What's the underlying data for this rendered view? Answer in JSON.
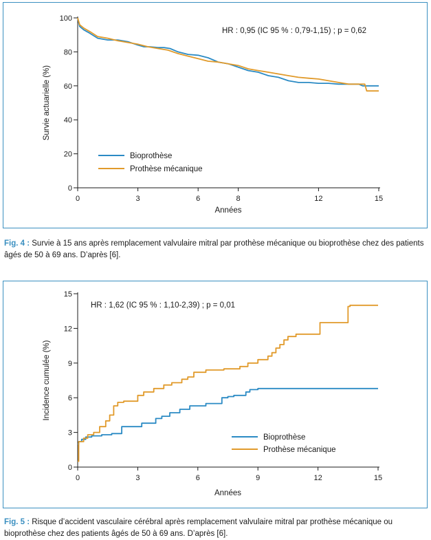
{
  "colors": {
    "bio": "#2a8ac4",
    "meca": "#e19a2a",
    "frame": "#3a8fc0"
  },
  "captions": [
    {
      "label": "Fig. 4 :",
      "text": "Survie à 15 ans après remplacement valvulaire mitral par prothèse mécanique ou bioprothèse chez des patients âgés de 50 à 69 ans. D’après [6]."
    },
    {
      "label": "Fig. 5 :",
      "text": "Risque d’accident vasculaire cérébral après remplacement valvulaire mitral par prothèse mécanique ou bioprothèse chez des patients âgés de 50 à 69 ans. D’après [6]."
    }
  ],
  "chart_data": [
    {
      "type": "line",
      "step": false,
      "xlabel": "Années",
      "ylabel": "Survie actuarielle (%)",
      "annotation": "HR : 0,95 (IC 95 % : 0,79-1,15) ; p = 0,62",
      "xlim": [
        0,
        15
      ],
      "ylim": [
        0,
        100
      ],
      "xticks": [
        0,
        3,
        6,
        8,
        12,
        15
      ],
      "xtick_labels": [
        "0",
        "3",
        "6",
        "8",
        "12",
        "15"
      ],
      "yticks": [
        0,
        20,
        40,
        60,
        80,
        100
      ],
      "legend_position": "bottom-left",
      "series": [
        {
          "name": "Bioprothèse",
          "color_key": "bio",
          "x": [
            0,
            0.1,
            0.3,
            0.6,
            1,
            1.5,
            2,
            2.5,
            3,
            3.3,
            3.6,
            4,
            4.3,
            4.6,
            5,
            5.5,
            6,
            6.5,
            7,
            7.5,
            8,
            8.5,
            9,
            9.5,
            10,
            10.5,
            11,
            11.5,
            12,
            12.5,
            13,
            13.5,
            14,
            14.2,
            14.5,
            15
          ],
          "y": [
            100,
            95,
            93,
            91,
            88,
            87,
            87,
            86,
            84,
            83,
            83,
            82.5,
            82.5,
            82,
            80,
            78.5,
            78,
            76.5,
            74,
            73,
            71,
            69,
            68,
            66,
            65,
            63,
            62,
            62,
            61.5,
            61.5,
            61,
            61,
            61,
            60,
            60,
            60
          ]
        },
        {
          "name": "Prothèse mécanique",
          "color_key": "meca",
          "x": [
            0,
            0.1,
            0.3,
            0.6,
            1,
            1.5,
            2,
            2.5,
            3,
            3.5,
            4,
            4.5,
            5,
            5.5,
            6,
            6.5,
            7,
            7.5,
            8,
            8.5,
            9,
            9.5,
            10,
            10.5,
            11,
            11.5,
            12,
            12.5,
            13,
            13.5,
            14,
            14.3,
            14.4,
            15
          ],
          "y": [
            100,
            96,
            94,
            92,
            89,
            88,
            86.5,
            85.5,
            84.5,
            83,
            82,
            81,
            79,
            77.5,
            76,
            74.5,
            74,
            73,
            72,
            70,
            69,
            68,
            67,
            66,
            65,
            64.5,
            64,
            63,
            62,
            61,
            61,
            61,
            57,
            57
          ]
        }
      ]
    },
    {
      "type": "line",
      "step": true,
      "xlabel": "Années",
      "ylabel": "Incidence cumulée (%)",
      "annotation": "HR : 1,62 (IC 95 % : 1,10-2,39) ; p = 0,01",
      "xlim": [
        0,
        15
      ],
      "ylim": [
        0,
        15
      ],
      "xticks": [
        0,
        3,
        6,
        9,
        12,
        15
      ],
      "xtick_labels": [
        "0",
        "3",
        "6",
        "9",
        "12",
        "15"
      ],
      "yticks": [
        0,
        3,
        6,
        9,
        12,
        15
      ],
      "legend_position": "bottom-right",
      "series": [
        {
          "name": "Bioprothèse",
          "color_key": "bio",
          "x": [
            0,
            0.05,
            0.2,
            0.4,
            0.7,
            1.2,
            1.7,
            2.2,
            3.2,
            3.9,
            4.2,
            4.6,
            5.1,
            5.6,
            6.4,
            7.2,
            7.5,
            7.8,
            8.4,
            8.6,
            9,
            15
          ],
          "y": [
            2,
            2.2,
            2.4,
            2.6,
            2.7,
            2.8,
            2.9,
            3.5,
            3.8,
            4.2,
            4.4,
            4.7,
            5,
            5.3,
            5.5,
            6,
            6.1,
            6.2,
            6.5,
            6.7,
            6.8,
            6.8
          ]
        },
        {
          "name": "Prothèse mécanique",
          "color_key": "meca",
          "x": [
            0,
            0.05,
            0.3,
            0.5,
            0.8,
            1.1,
            1.4,
            1.6,
            1.8,
            2,
            2.3,
            3.0,
            3.3,
            3.8,
            4.3,
            4.7,
            5.2,
            5.5,
            5.8,
            6.4,
            7.3,
            8.1,
            8.5,
            9,
            9.5,
            9.7,
            9.9,
            10.1,
            10.3,
            10.5,
            10.9,
            12.1,
            13.5,
            13.6,
            15
          ],
          "y": [
            0.5,
            2.2,
            2.5,
            2.8,
            3,
            3.5,
            4,
            4.5,
            5.3,
            5.6,
            5.7,
            6.2,
            6.5,
            6.8,
            7.1,
            7.3,
            7.6,
            7.8,
            8.2,
            8.4,
            8.5,
            8.7,
            9,
            9.3,
            9.6,
            9.9,
            10.3,
            10.6,
            11,
            11.3,
            11.5,
            12.5,
            13.9,
            14,
            14
          ]
        }
      ]
    }
  ]
}
